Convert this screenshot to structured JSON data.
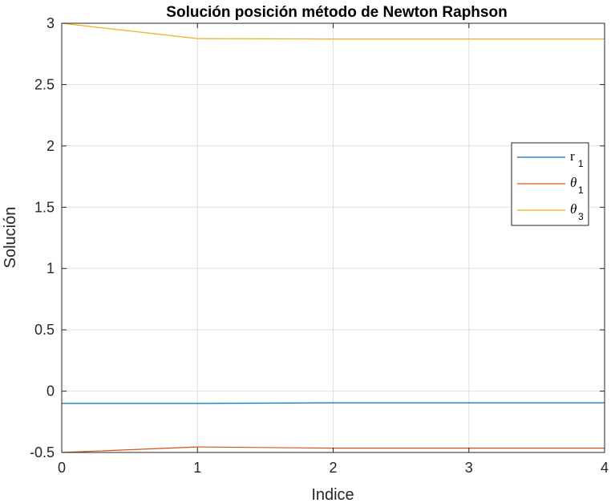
{
  "chart_data": {
    "type": "line",
    "title": "Solución posición método de Newton Raphson",
    "xlabel": "Indice",
    "ylabel": "Solución",
    "xlim": [
      0,
      4
    ],
    "ylim": [
      -0.5,
      3
    ],
    "xticks": [
      0,
      1,
      2,
      3,
      4
    ],
    "xtick_labels": [
      "0",
      "1",
      "2",
      "3",
      "4"
    ],
    "yticks": [
      -0.5,
      0,
      0.5,
      1,
      1.5,
      2,
      2.5,
      3
    ],
    "ytick_labels": [
      "-0.5",
      "0",
      "0.5",
      "1",
      "1.5",
      "2",
      "2.5",
      "3"
    ],
    "grid": true,
    "legend_position": "right",
    "x": [
      0,
      1,
      2,
      3,
      4
    ],
    "series": [
      {
        "name": "r",
        "subscript": "1",
        "color": "#0072BD",
        "values": [
          -0.1,
          -0.1,
          -0.095,
          -0.095,
          -0.095
        ]
      },
      {
        "name": "θ",
        "subscript": "1",
        "color": "#D95319",
        "values": [
          -0.5,
          -0.455,
          -0.465,
          -0.465,
          -0.465
        ]
      },
      {
        "name": "θ",
        "subscript": "3",
        "color": "#EDB120",
        "values": [
          3.0,
          2.875,
          2.872,
          2.872,
          2.872
        ]
      }
    ]
  }
}
